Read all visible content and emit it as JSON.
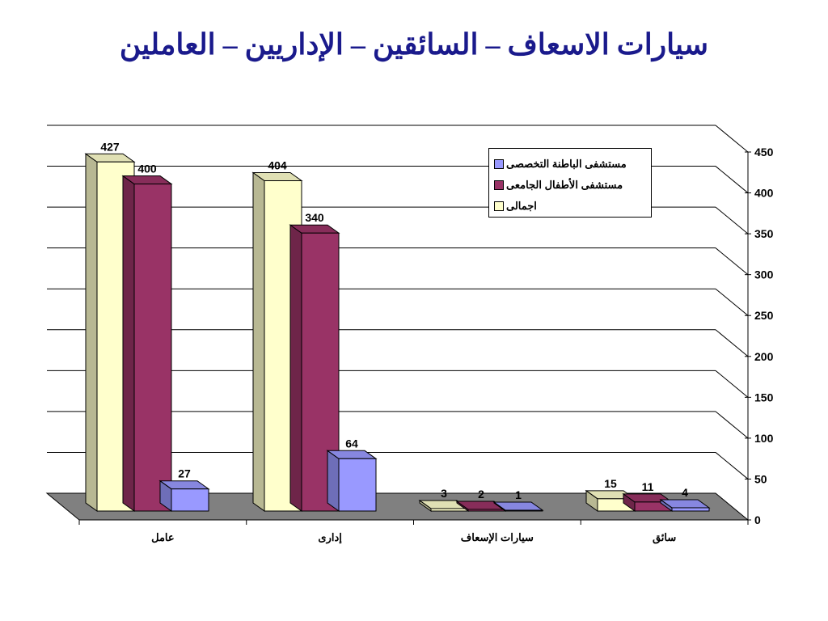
{
  "title": "سيارات الاسعاف – السائقين – الإداريين – العاملين",
  "colors": {
    "series_0": "#9999ff",
    "series_1": "#993366",
    "series_2": "#ffffcc",
    "floor": "#808080",
    "text_title": "#1a1a8c"
  },
  "chart_data": {
    "type": "bar",
    "title": "سيارات الاسعاف – السائقين – الإداريين – العاملين",
    "categories": [
      "عامل",
      "إدارى",
      "سيارات الإسعاف",
      "سائق"
    ],
    "series": [
      {
        "name": "مستشفى الباطنة التخصصى",
        "values": [
          27,
          64,
          1,
          4
        ],
        "color": "#9999ff"
      },
      {
        "name": "مستشفى الأطفال الجامعى",
        "values": [
          400,
          340,
          2,
          11
        ],
        "color": "#993366"
      },
      {
        "name": "اجمالى",
        "values": [
          427,
          404,
          3,
          15
        ],
        "color": "#ffffcc"
      }
    ],
    "ylim": [
      0,
      450
    ],
    "yticks": [
      0,
      50,
      100,
      150,
      200,
      250,
      300,
      350,
      400,
      450
    ],
    "grid": true,
    "legend_position": "top-right",
    "style": "3d-clustered-column"
  }
}
